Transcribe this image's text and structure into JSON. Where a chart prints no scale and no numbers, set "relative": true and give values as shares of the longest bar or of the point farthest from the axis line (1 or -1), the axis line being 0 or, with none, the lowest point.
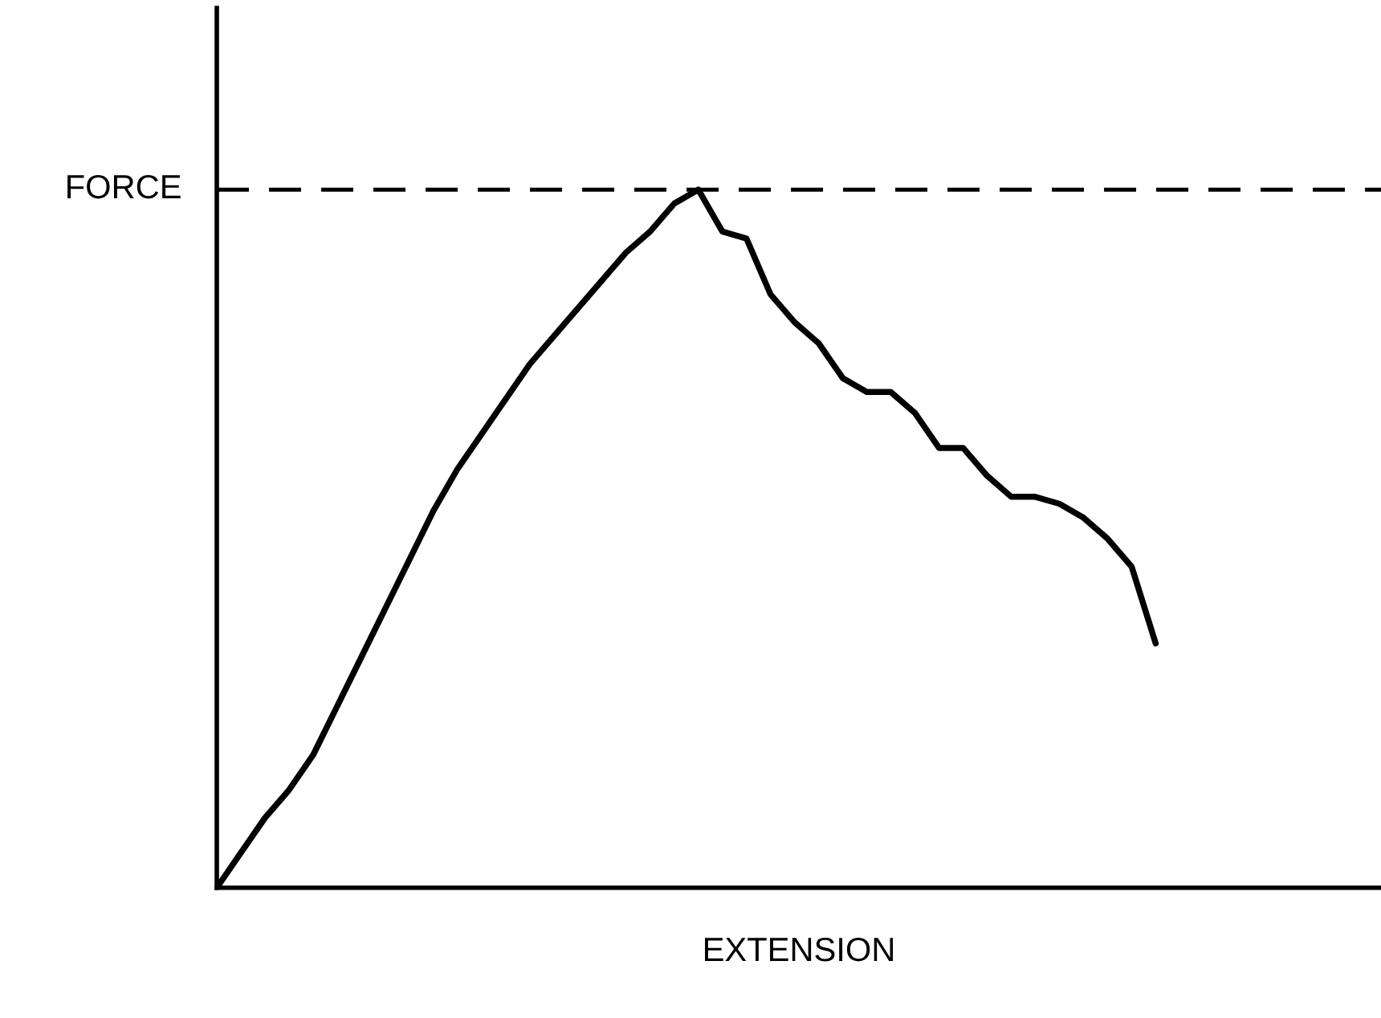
{
  "chart_data": {
    "type": "line",
    "relative": true,
    "xlabel": "EXTENSION",
    "categories": [
      null,
      null,
      null,
      null,
      null,
      null,
      null,
      null,
      null,
      null,
      null,
      null,
      null,
      null,
      null,
      null,
      null,
      null,
      null,
      null,
      null,
      null,
      null,
      null,
      null,
      null,
      null,
      null,
      null,
      null,
      null,
      null,
      null,
      null,
      null,
      null,
      null,
      null,
      null,
      null
    ],
    "series": [
      {
        "color": "#000000",
        "values": [
          0,
          0.05,
          0.1,
          0.14,
          0.19,
          0.26,
          0.33,
          0.4,
          0.47,
          0.54,
          0.6,
          0.65,
          0.7,
          0.75,
          0.79,
          0.83,
          0.87,
          0.91,
          0.94,
          0.98,
          1,
          0.94,
          0.93,
          0.85,
          0.81,
          0.78,
          0.73,
          0.71,
          0.71,
          0.68,
          0.63,
          0.63,
          0.59,
          0.56,
          0.56,
          0.55,
          0.53,
          0.5,
          0.46,
          0.35
        ]
      }
    ],
    "ref_lines": [
      {
        "axis": "y",
        "value": 1,
        "label": "FORCE",
        "color": "#000000",
        "line_style": "dashed"
      }
    ],
    "legend": false,
    "marker": "none",
    "line_style": "solid"
  }
}
